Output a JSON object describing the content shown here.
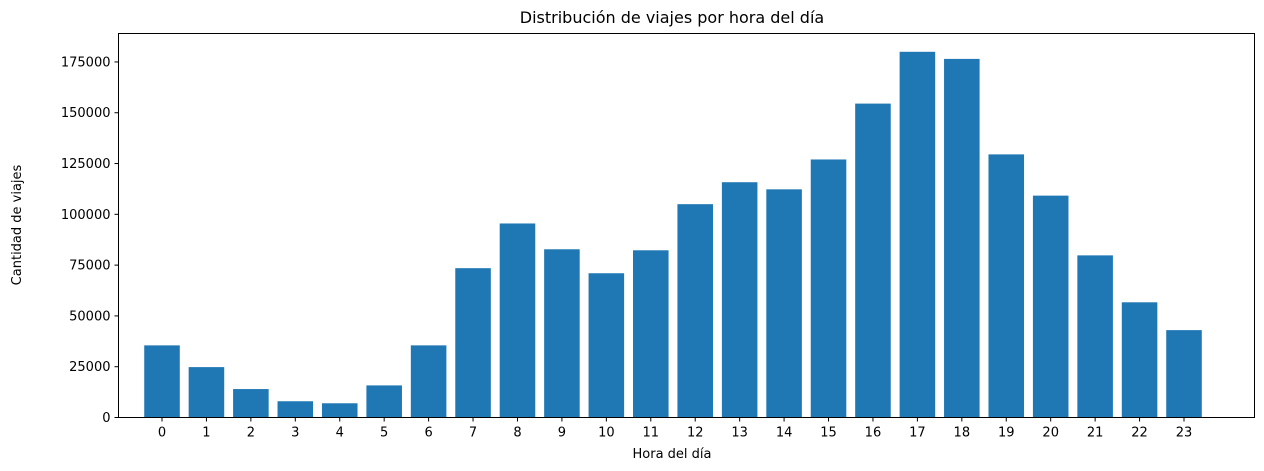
{
  "chart_data": {
    "type": "bar",
    "title": "Distribución de viajes por hora del día",
    "xlabel": "Hora del día",
    "ylabel": "Cantidad de viajes",
    "categories": [
      "0",
      "1",
      "2",
      "3",
      "4",
      "5",
      "6",
      "7",
      "8",
      "9",
      "10",
      "11",
      "12",
      "13",
      "14",
      "15",
      "16",
      "17",
      "18",
      "19",
      "20",
      "21",
      "22",
      "23"
    ],
    "values": [
      35500,
      24800,
      14000,
      8000,
      7000,
      15800,
      35500,
      73500,
      95500,
      82800,
      71000,
      82300,
      105000,
      115800,
      112300,
      127000,
      154500,
      180000,
      176500,
      129500,
      109200,
      79800,
      56700,
      43000
    ],
    "ylim": [
      0,
      189000
    ],
    "yticks": [
      0,
      25000,
      50000,
      75000,
      100000,
      125000,
      150000,
      175000
    ],
    "grid": false,
    "bar_color": "#1f77b4"
  }
}
